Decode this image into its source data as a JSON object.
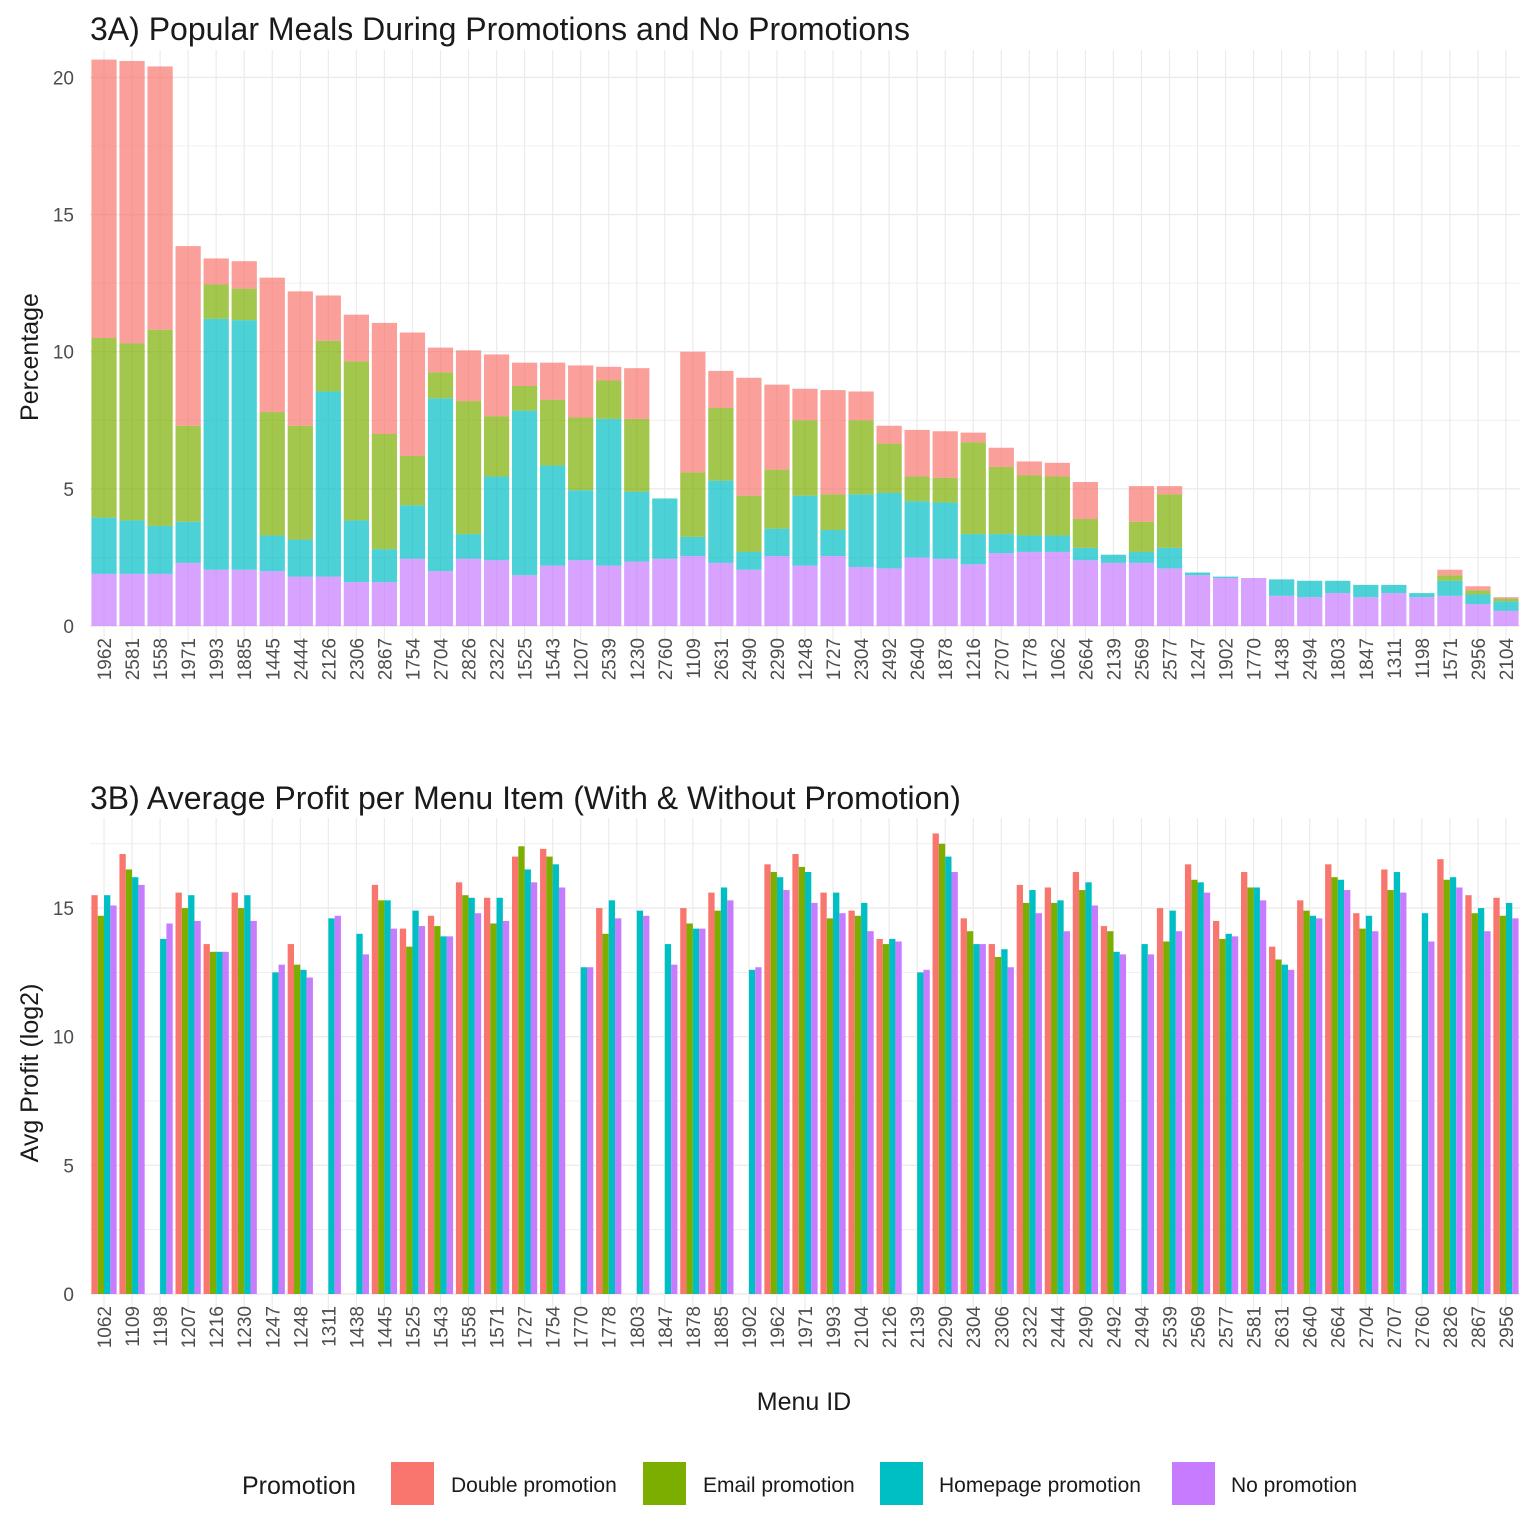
{
  "colors": {
    "Double promotion": "#F8766D",
    "Email promotion": "#7CAE00",
    "Homepage promotion": "#00BFC4",
    "No promotion": "#C77CFF"
  },
  "legend": {
    "title": "Promotion",
    "items": [
      "Double promotion",
      "Email promotion",
      "Homepage promotion",
      "No promotion"
    ]
  },
  "chart_data": [
    {
      "type": "bar",
      "stacked": true,
      "title": "3A) Popular Meals During Promotions and No Promotions",
      "xlabel": "",
      "ylabel": "Percentage",
      "ylim": [
        0,
        21
      ],
      "yticks": [
        0,
        5,
        10,
        15,
        20
      ],
      "grid": true,
      "legend_position": "bottom",
      "categories": [
        "1962",
        "2581",
        "1558",
        "1971",
        "1993",
        "1885",
        "1445",
        "2444",
        "2126",
        "2306",
        "2867",
        "1754",
        "2704",
        "2826",
        "2322",
        "1525",
        "1543",
        "1207",
        "2539",
        "1230",
        "2760",
        "1109",
        "2631",
        "2490",
        "2290",
        "1248",
        "1727",
        "2304",
        "2492",
        "2640",
        "1878",
        "1216",
        "2707",
        "1778",
        "1062",
        "2664",
        "2139",
        "2569",
        "2577",
        "1247",
        "1902",
        "1770",
        "1438",
        "2494",
        "1803",
        "1847",
        "1311",
        "1198",
        "1571",
        "2956",
        "2104"
      ],
      "series": [
        {
          "name": "No promotion",
          "values": [
            1.9,
            1.9,
            1.9,
            2.3,
            2.05,
            2.05,
            2.0,
            1.8,
            1.8,
            1.6,
            1.6,
            2.45,
            2.0,
            2.45,
            2.4,
            1.85,
            2.2,
            2.4,
            2.2,
            2.35,
            2.45,
            2.55,
            2.3,
            2.05,
            2.55,
            2.2,
            2.55,
            2.15,
            2.1,
            2.5,
            2.45,
            2.25,
            2.65,
            2.7,
            2.7,
            2.4,
            2.3,
            2.3,
            2.1,
            1.85,
            1.75,
            1.75,
            1.1,
            1.05,
            1.2,
            1.05,
            1.2,
            1.05,
            1.1,
            0.8,
            0.55
          ]
        },
        {
          "name": "Homepage promotion",
          "values": [
            2.05,
            1.95,
            1.75,
            1.5,
            9.15,
            9.1,
            1.3,
            1.35,
            6.75,
            2.25,
            1.2,
            1.95,
            6.3,
            0.9,
            3.05,
            6.0,
            3.65,
            2.55,
            5.35,
            2.55,
            2.2,
            0.7,
            3.0,
            0.65,
            1.0,
            2.55,
            0.95,
            2.65,
            2.75,
            2.05,
            2.05,
            1.1,
            0.7,
            0.6,
            0.6,
            0.45,
            0.3,
            0.4,
            0.75,
            0.1,
            0.05,
            0.0,
            0.6,
            0.6,
            0.45,
            0.45,
            0.3,
            0.15,
            0.55,
            0.35,
            0.35
          ]
        },
        {
          "name": "Email promotion",
          "values": [
            6.55,
            6.45,
            7.15,
            3.5,
            1.25,
            1.15,
            4.5,
            4.15,
            1.85,
            5.8,
            4.2,
            1.8,
            0.95,
            4.85,
            2.2,
            0.9,
            2.4,
            2.65,
            1.4,
            2.65,
            0,
            2.35,
            2.65,
            2.05,
            2.15,
            2.75,
            1.3,
            2.7,
            1.8,
            0.9,
            0.9,
            3.35,
            2.45,
            2.2,
            2.15,
            1.05,
            0,
            1.1,
            1.95,
            0,
            0,
            0,
            0,
            0,
            0,
            0,
            0,
            0,
            0.2,
            0.15,
            0.1
          ]
        },
        {
          "name": "Double promotion",
          "values": [
            10.15,
            10.3,
            9.6,
            6.55,
            0.95,
            1.0,
            4.9,
            4.9,
            1.65,
            1.7,
            4.05,
            4.5,
            0.9,
            1.85,
            2.25,
            0.85,
            1.35,
            1.9,
            0.5,
            1.85,
            0,
            4.4,
            1.35,
            4.3,
            3.1,
            1.15,
            3.8,
            1.05,
            0.65,
            1.7,
            1.7,
            0.35,
            0.7,
            0.5,
            0.5,
            1.35,
            0,
            1.3,
            0.3,
            0,
            0,
            0,
            0,
            0,
            0,
            0,
            0,
            0,
            0.2,
            0.15,
            0.05
          ]
        }
      ]
    },
    {
      "type": "bar",
      "grouped": true,
      "title": "3B) Average Profit per Menu Item (With & Without Promotion)",
      "xlabel": "Menu ID",
      "ylabel": "Avg Profit (log2)",
      "ylim": [
        0,
        18.5
      ],
      "yticks": [
        0,
        5,
        10,
        15
      ],
      "grid": true,
      "legend_position": "bottom",
      "categories": [
        "1062",
        "1109",
        "1198",
        "1207",
        "1216",
        "1230",
        "1247",
        "1248",
        "1311",
        "1438",
        "1445",
        "1525",
        "1543",
        "1558",
        "1571",
        "1727",
        "1754",
        "1770",
        "1778",
        "1803",
        "1847",
        "1878",
        "1885",
        "1902",
        "1962",
        "1971",
        "1993",
        "2104",
        "2126",
        "2139",
        "2290",
        "2304",
        "2306",
        "2322",
        "2444",
        "2490",
        "2492",
        "2494",
        "2539",
        "2569",
        "2577",
        "2581",
        "2631",
        "2640",
        "2664",
        "2704",
        "2707",
        "2760",
        "2826",
        "2867",
        "2956"
      ],
      "series": [
        {
          "name": "Double promotion",
          "values": [
            15.5,
            17.1,
            null,
            15.6,
            13.6,
            15.6,
            null,
            13.6,
            null,
            null,
            15.9,
            14.2,
            14.7,
            16.0,
            15.4,
            17.0,
            17.3,
            null,
            15.0,
            null,
            null,
            15.0,
            15.6,
            null,
            16.7,
            17.1,
            15.6,
            14.9,
            13.8,
            null,
            17.9,
            14.6,
            13.6,
            15.9,
            15.8,
            16.4,
            14.3,
            null,
            15.0,
            16.7,
            14.5,
            16.4,
            13.5,
            15.3,
            16.7,
            14.8,
            16.5,
            null,
            16.9,
            15.5,
            15.4
          ]
        },
        {
          "name": "Email promotion",
          "values": [
            14.7,
            16.5,
            null,
            15.0,
            13.3,
            15.0,
            null,
            12.8,
            null,
            null,
            15.3,
            13.5,
            14.3,
            15.5,
            14.4,
            17.4,
            17.0,
            null,
            14.0,
            null,
            null,
            14.4,
            14.9,
            null,
            16.4,
            16.6,
            14.6,
            14.7,
            13.6,
            null,
            17.5,
            14.1,
            13.1,
            15.2,
            15.2,
            15.7,
            14.1,
            null,
            13.7,
            16.1,
            13.8,
            15.8,
            13.0,
            14.9,
            16.2,
            14.2,
            15.7,
            null,
            16.1,
            14.8,
            14.7
          ]
        },
        {
          "name": "Homepage promotion",
          "values": [
            15.5,
            16.2,
            13.8,
            15.5,
            13.3,
            15.5,
            12.5,
            12.6,
            14.6,
            14.0,
            15.3,
            14.9,
            13.9,
            15.4,
            15.4,
            16.5,
            16.7,
            12.7,
            15.3,
            14.9,
            13.6,
            14.2,
            15.8,
            12.6,
            16.2,
            16.4,
            15.6,
            15.2,
            13.8,
            12.5,
            17.0,
            13.6,
            13.4,
            15.7,
            15.3,
            16.0,
            13.3,
            13.6,
            14.9,
            16.0,
            14.0,
            15.8,
            12.8,
            14.7,
            16.1,
            14.7,
            16.4,
            14.8,
            16.2,
            15.0,
            15.2
          ]
        },
        {
          "name": "No promotion",
          "values": [
            15.1,
            15.9,
            14.4,
            14.5,
            13.3,
            14.5,
            12.8,
            12.3,
            14.7,
            13.2,
            14.2,
            14.3,
            13.9,
            14.8,
            14.5,
            16.0,
            15.8,
            12.7,
            14.6,
            14.7,
            12.8,
            14.2,
            15.3,
            12.7,
            15.7,
            15.2,
            14.8,
            14.1,
            13.7,
            12.6,
            16.4,
            13.6,
            12.7,
            14.8,
            14.1,
            15.1,
            13.2,
            13.2,
            14.1,
            15.6,
            13.9,
            15.3,
            12.6,
            14.6,
            15.7,
            14.1,
            15.6,
            13.7,
            15.8,
            14.1,
            14.6
          ]
        }
      ]
    }
  ]
}
